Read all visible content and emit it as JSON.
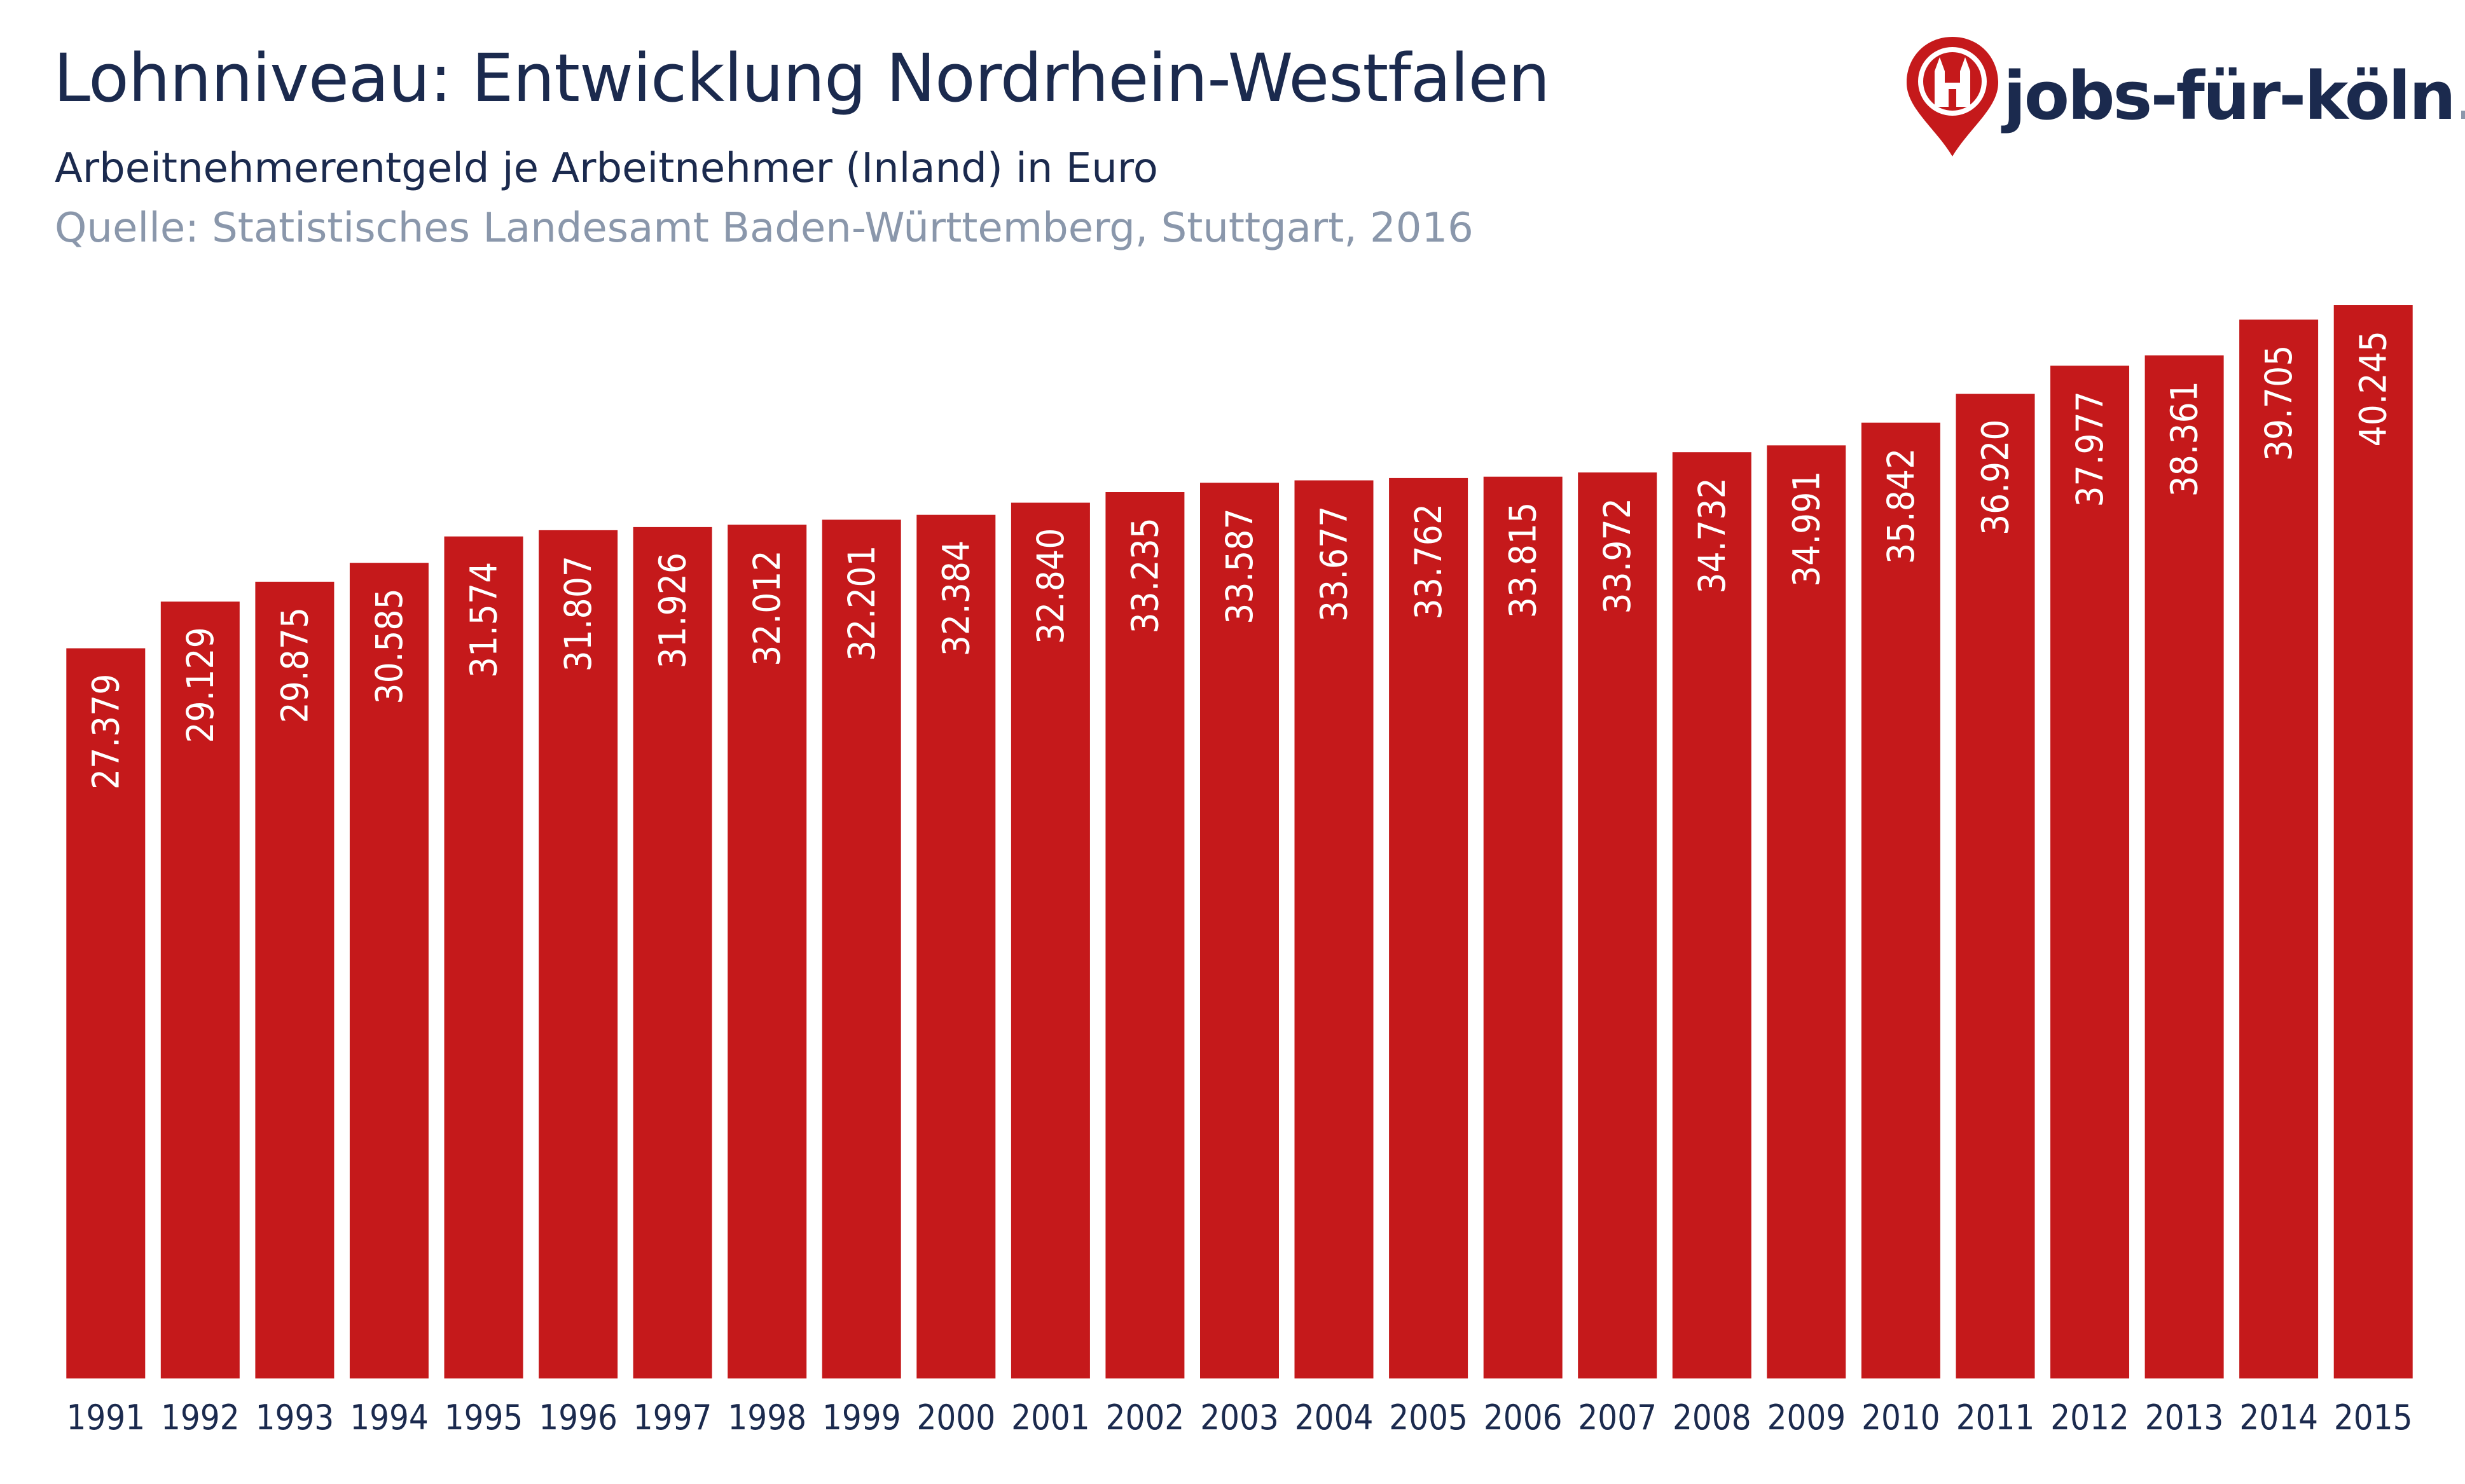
{
  "chart_data": {
    "type": "bar",
    "title": "Lohnniveau: Entwicklung Nordrhein-Westfalen",
    "subtitle": "Arbeitnehmerentgeld je Arbeitnehmer (Inland) in Euro",
    "source": "Quelle: Statistisches Landesamt Baden-Württemberg, Stuttgart, 2016",
    "categories": [
      "1991",
      "1992",
      "1993",
      "1994",
      "1995",
      "1996",
      "1997",
      "1998",
      "1999",
      "2000",
      "2001",
      "2002",
      "2003",
      "2004",
      "2005",
      "2006",
      "2007",
      "2008",
      "2009",
      "2010",
      "2011",
      "2012",
      "2013",
      "2014",
      "2015"
    ],
    "values": [
      27379,
      29129,
      29875,
      30585,
      31574,
      31807,
      31926,
      32012,
      32201,
      32384,
      32840,
      33235,
      33587,
      33677,
      33762,
      33815,
      33972,
      34732,
      34991,
      35842,
      36920,
      37977,
      38361,
      39705,
      40245
    ],
    "value_labels": [
      "27.379",
      "29.129",
      "29.875",
      "30.585",
      "31.574",
      "31.807",
      "31.926",
      "32.012",
      "32.201",
      "32.384",
      "32.840",
      "33.235",
      "33.587",
      "33.677",
      "33.762",
      "33.815",
      "33.972",
      "34.732",
      "34.991",
      "35.842",
      "36.920",
      "37.977",
      "38.361",
      "39.705",
      "40.245"
    ],
    "xlabel": "",
    "ylabel": "",
    "ylim": [
      0,
      41000
    ],
    "grid": false,
    "legend": "none",
    "colors": {
      "bar": "#c5191b",
      "bar_label": "#ffffff",
      "title": "#1b2a4e",
      "source": "#8a97ab"
    }
  },
  "logo": {
    "main": "jobs-für-köln",
    "tld": ".de",
    "pin_color": "#c5191b",
    "icon": "map-pin-cathedral-icon"
  }
}
